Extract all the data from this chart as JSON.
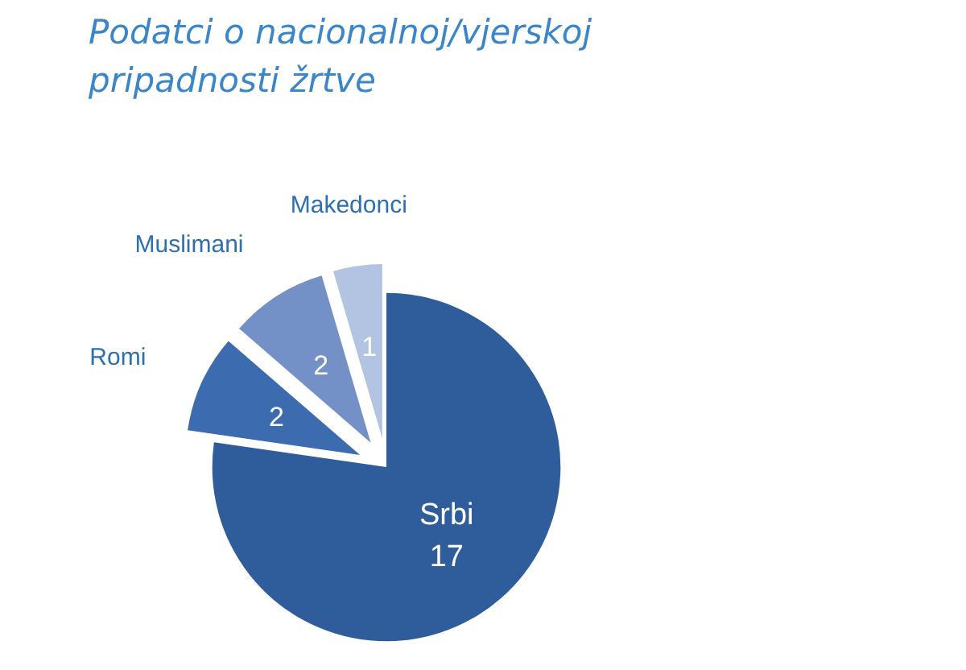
{
  "chart_data": {
    "type": "pie",
    "title": "Podatci o nacionalnoj/vjerskoj pripadnosti žrtve",
    "categories": [
      "Srbi",
      "Romi",
      "Muslimani",
      "Makedonci"
    ],
    "values": [
      17,
      2,
      2,
      1
    ],
    "colors": [
      "#2f5d9c",
      "#3d6bb0",
      "#7391c6",
      "#b3c3e2"
    ],
    "data_labels": true
  }
}
